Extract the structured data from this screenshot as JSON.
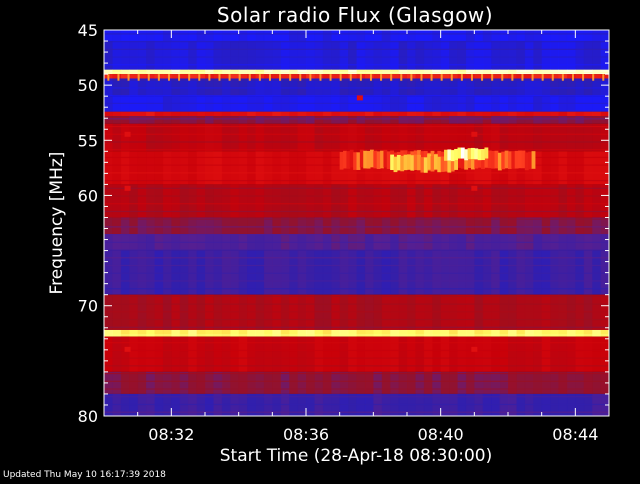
{
  "chart_data": {
    "type": "heatmap",
    "title": "Solar radio Flux (Glasgow)",
    "xlabel": "Start Time (28-Apr-18 08:30:00)",
    "ylabel": "Frequency [MHz]",
    "x_unit": "minutes",
    "xlim": [
      0,
      15
    ],
    "ylim": [
      45,
      80
    ],
    "y_inverted": true,
    "x_ticks": [
      {
        "value": 2,
        "label": "08:32"
      },
      {
        "value": 6,
        "label": "08:36"
      },
      {
        "value": 10,
        "label": "08:40"
      },
      {
        "value": 14,
        "label": "08:44"
      }
    ],
    "y_ticks": [
      {
        "value": 45,
        "label": "45"
      },
      {
        "value": 50,
        "label": "50"
      },
      {
        "value": 55,
        "label": "55"
      },
      {
        "value": 60,
        "label": "60"
      },
      {
        "value": 70,
        "label": "70"
      },
      {
        "value": 80,
        "label": "80"
      }
    ],
    "colormap": [
      "#1a1aff",
      "#2b1fb0",
      "#5a1f8f",
      "#9a1020",
      "#c8000a",
      "#e01010",
      "#ff4020",
      "#ffb030",
      "#ffff66",
      "#ffffff"
    ],
    "frequency_bands": [
      {
        "from": 45.0,
        "to": 46.0,
        "level": 0.02
      },
      {
        "from": 46.0,
        "to": 48.6,
        "level": 0.05
      },
      {
        "from": 48.6,
        "to": 49.0,
        "level": 0.95
      },
      {
        "from": 49.0,
        "to": 49.4,
        "level": 0.6
      },
      {
        "from": 49.4,
        "to": 51.0,
        "level": 0.08
      },
      {
        "from": 51.0,
        "to": 52.4,
        "level": 0.03
      },
      {
        "from": 52.4,
        "to": 52.8,
        "level": 0.55
      },
      {
        "from": 52.8,
        "to": 53.5,
        "level": 0.3
      },
      {
        "from": 53.5,
        "to": 56.0,
        "level": 0.42
      },
      {
        "from": 56.0,
        "to": 59.0,
        "level": 0.5
      },
      {
        "from": 59.0,
        "to": 62.0,
        "level": 0.4
      },
      {
        "from": 62.0,
        "to": 63.5,
        "level": 0.3
      },
      {
        "from": 63.5,
        "to": 65.0,
        "level": 0.2
      },
      {
        "from": 65.0,
        "to": 69.0,
        "level": 0.15
      },
      {
        "from": 69.0,
        "to": 72.2,
        "level": 0.38
      },
      {
        "from": 72.2,
        "to": 72.8,
        "level": 0.88
      },
      {
        "from": 72.8,
        "to": 76.0,
        "level": 0.45
      },
      {
        "from": 76.0,
        "to": 78.0,
        "level": 0.3
      },
      {
        "from": 78.0,
        "to": 80.0,
        "level": 0.15
      }
    ],
    "bursts": [
      {
        "t_start": 7.0,
        "t_end": 12.8,
        "f_start": 56.0,
        "f_end": 57.6,
        "level": 0.66
      },
      {
        "t_start": 8.5,
        "t_end": 10.5,
        "f_start": 56.4,
        "f_end": 57.8,
        "level": 0.78
      },
      {
        "t_start": 10.1,
        "t_end": 11.4,
        "f_start": 55.8,
        "f_end": 56.8,
        "level": 0.9
      }
    ],
    "interference_marks": [
      {
        "t": 0.7,
        "f": 54.5
      },
      {
        "t": 0.7,
        "f": 59.4
      },
      {
        "t": 0.7,
        "f": 74.0
      },
      {
        "t": 7.6,
        "f": 51.2
      },
      {
        "t": 11.0,
        "f": 54.5
      },
      {
        "t": 11.0,
        "f": 59.4
      },
      {
        "t": 11.0,
        "f": 74.0
      }
    ]
  },
  "footer": {
    "updated": "Updated Thu May 10 16:17:39 2018"
  }
}
